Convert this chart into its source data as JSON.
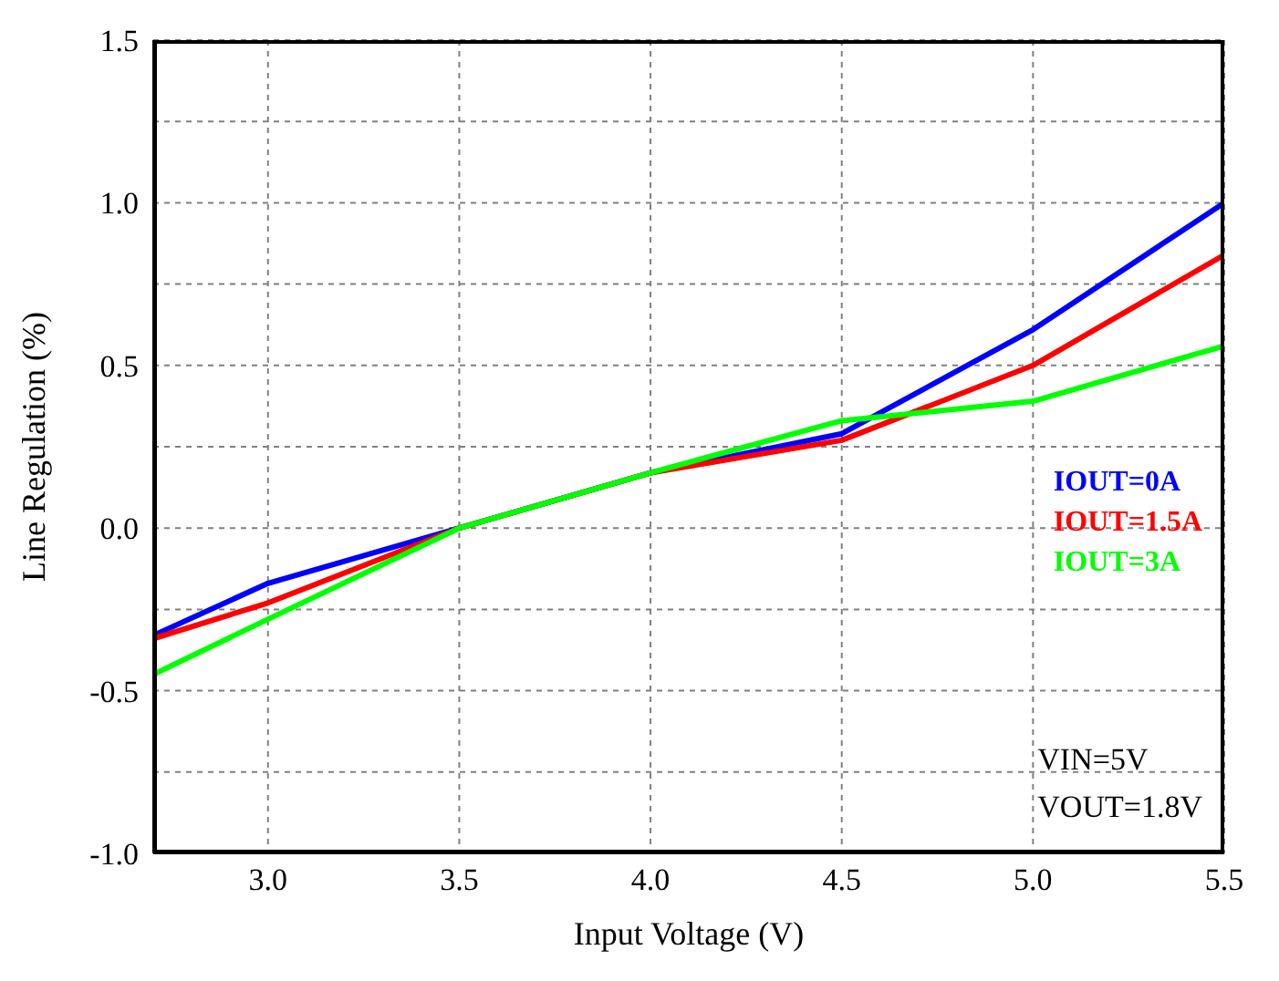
{
  "chart_data": {
    "type": "line",
    "xlabel": "Input Voltage (V)",
    "ylabel": "Line Regulation (%)",
    "x": [
      2.7,
      3.0,
      3.5,
      4.0,
      4.5,
      5.0,
      5.5
    ],
    "series": [
      {
        "name": "IOUT=0A",
        "color": "#0000ff",
        "values": [
          -0.33,
          -0.17,
          0,
          0.17,
          0.29,
          0.61,
          1.0
        ]
      },
      {
        "name": "IOUT=1.5A",
        "color": "#ff0000",
        "values": [
          -0.34,
          -0.23,
          0,
          0.17,
          0.27,
          0.5,
          0.84
        ]
      },
      {
        "name": "IOUT=3A",
        "color": "#00ff00",
        "values": [
          -0.45,
          -0.28,
          0,
          0.17,
          0.33,
          0.39,
          0.56
        ]
      }
    ],
    "xlim": [
      2.7,
      5.5
    ],
    "xticks": [
      {
        "value": 3,
        "label": "3.0"
      },
      3.5,
      {
        "value": 4,
        "label": "4.0"
      },
      4.5,
      {
        "value": 5,
        "label": "5.0"
      },
      5.5
    ],
    "ylim": [
      -1.0,
      1.5
    ],
    "yticks": [
      {
        "value": -1,
        "label": "-1.0"
      },
      {
        "value": -0.75,
        "label": null
      },
      -0.5,
      {
        "value": -0.25,
        "label": null
      },
      {
        "value": 0,
        "label": "0.0"
      },
      {
        "value": 0.25,
        "label": null
      },
      0.5,
      {
        "value": 0.75,
        "label": null
      },
      {
        "value": 1,
        "label": "1.0"
      },
      {
        "value": 1.25,
        "label": null
      },
      1.5
    ],
    "grid": true,
    "legend": "right",
    "marker": "none",
    "line_style": "solid",
    "annotations": [
      "VIN=5V",
      "VOUT=1.8V"
    ]
  }
}
